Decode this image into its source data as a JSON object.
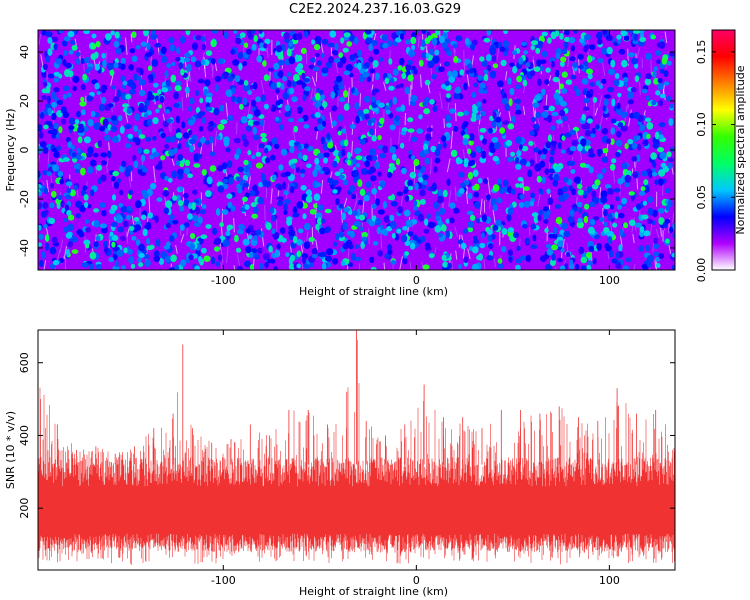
{
  "title": "C2E2.2024.237.16.03.G29",
  "chart_data": [
    {
      "type": "heatmap",
      "title": "C2E2.2024.237.16.03.G29",
      "xlabel": "Height of straight line (km)",
      "ylabel": "Frequency (Hz)",
      "xlim": [
        -196,
        134
      ],
      "ylim": [
        -49,
        49
      ],
      "xticks": [
        -100,
        0,
        100
      ],
      "yticks": [
        -40,
        -20,
        0,
        20,
        40
      ],
      "colorbar": {
        "label": "Normalized spectral amplitude",
        "range": [
          0,
          0.165
        ],
        "ticks": [
          "0.00",
          "0.05",
          "0.10",
          "0.15"
        ],
        "colors": [
          "#ffffff",
          "#b000ff",
          "#0000ff",
          "#00c8ff",
          "#00ff66",
          "#33ff00",
          "#ffff00",
          "#ff8000",
          "#ff0000",
          "#ff0066"
        ]
      },
      "background_level": 0.02,
      "typical_peak_level": 0.06,
      "max_level": 0.09
    },
    {
      "type": "area",
      "xlabel": "Height of straight line (km)",
      "ylabel": "SNR (10 * v/v)",
      "xlim": [
        -196,
        134
      ],
      "ylim": [
        30,
        690
      ],
      "xticks": [
        -100,
        0,
        100
      ],
      "yticks": [
        200,
        400,
        600
      ],
      "color": "#f03232",
      "envelope_km": [
        -196,
        -186,
        -176,
        -166,
        -156,
        -146,
        -136,
        -126,
        -121,
        -116,
        -106,
        -96,
        -86,
        -76,
        -66,
        -56,
        -46,
        -36,
        -31,
        -26,
        -16,
        -6,
        4,
        14,
        24,
        34,
        44,
        54,
        64,
        74,
        84,
        94,
        104,
        114,
        124,
        134
      ],
      "upper_envelope": [
        600,
        430,
        360,
        370,
        350,
        370,
        420,
        460,
        650,
        420,
        380,
        390,
        430,
        400,
        470,
        470,
        430,
        520,
        690,
        440,
        400,
        430,
        540,
        450,
        450,
        420,
        470,
        470,
        460,
        480,
        450,
        440,
        530,
        460,
        470,
        440
      ],
      "lower_envelope": [
        40,
        50,
        45,
        50,
        40,
        45,
        50,
        45,
        60,
        45,
        45,
        50,
        45,
        45,
        55,
        50,
        45,
        50,
        60,
        45,
        50,
        45,
        60,
        45,
        50,
        45,
        55,
        50,
        45,
        45,
        50,
        45,
        55,
        45,
        50,
        45
      ],
      "typical_range": [
        100,
        320
      ]
    }
  ]
}
